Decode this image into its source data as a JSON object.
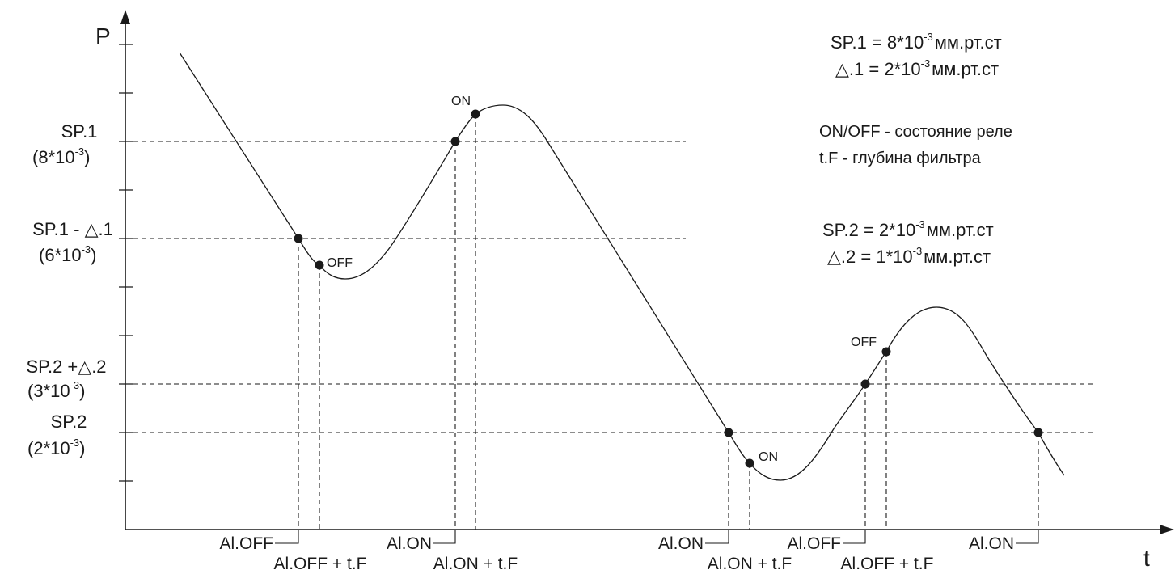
{
  "axes": {
    "y_label": "P",
    "x_label": "t"
  },
  "y_levels": [
    {
      "line1": "SP.1",
      "line2": "(8*10",
      "exp": "-3",
      "close": ")"
    },
    {
      "line1": "SP.1 - △.1",
      "line2": "(6*10",
      "exp": "-3",
      "close": ")"
    },
    {
      "line1": "SP.2 +△.2",
      "line2": "(3*10",
      "exp": "-3",
      "close": ")"
    },
    {
      "line1": "SP.2",
      "line2": "(2*10",
      "exp": "-3",
      "close": ")"
    }
  ],
  "settings": {
    "sp1": {
      "pre": "SP.1 = 8*10",
      "exp": "-3",
      "unit": "мм.рт.ст"
    },
    "d1": {
      "pre": "△.1 = 2*10",
      "exp": "-3",
      "unit": "мм.рт.ст"
    },
    "sp2": {
      "pre": "SP.2 = 2*10",
      "exp": "-3",
      "unit": "мм.рт.ст"
    },
    "d2": {
      "pre": "△.2 = 1*10",
      "exp": "-3",
      "unit": "мм.рт.ст"
    }
  },
  "legend": {
    "onoff_key": "ON/OFF",
    "onoff_desc": " - состояние реле",
    "tf_key": "t.F",
    "tf_desc": " - глубина фильтра"
  },
  "point_labels": {
    "on_top": "ON",
    "off_1": "OFF",
    "on_bottom": "ON",
    "off_2": "OFF"
  },
  "time_labels": {
    "al_off_1": "Al.OFF",
    "al_off_tf_1": "Al.OFF + t.F",
    "al_on_1": "Al.ON",
    "al_on_tf_1": "Al.ON + t.F",
    "al_on_2": "Al.ON",
    "al_on_tf_2": "Al.ON + t.F",
    "al_off_2": "Al.OFF",
    "al_off_tf_2": "Al.OFF + t.F",
    "al_on_3": "Al.ON"
  }
}
